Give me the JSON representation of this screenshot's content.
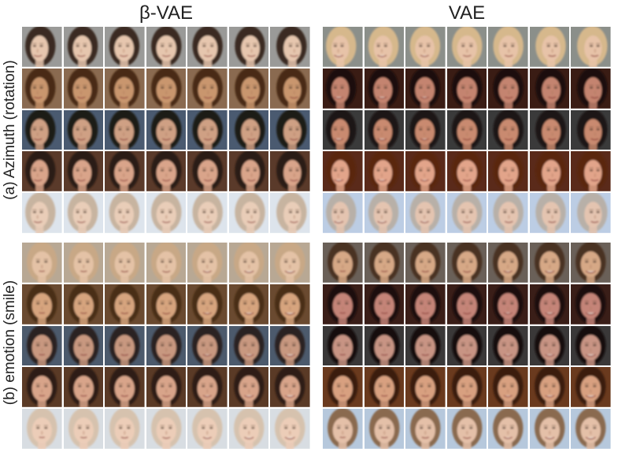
{
  "columns": {
    "beta_vae": "β-VAE",
    "vae": "VAE"
  },
  "rows": {
    "a": "(a) Azimuth (rotation)",
    "b": "(b) emotion (smile)"
  },
  "panels": {
    "a_beta": {
      "backgrounds": [
        "#9a9a98",
        "#8a6a50",
        "#4a5a70",
        "#5a3a2a",
        "#dde4ec"
      ],
      "skins": [
        "#e6c6ae",
        "#c9966e",
        "#cfa084",
        "#d9a48a",
        "#e9cdb8"
      ],
      "hair": [
        "#3a2c22",
        "#4a2c16",
        "#1e1a18",
        "#2a1a12",
        "#c7b4a0"
      ],
      "turn": [
        -0.5,
        -0.3,
        -0.1,
        0,
        0.1,
        0.3,
        0.5
      ],
      "smile": [
        0.5,
        0.5,
        0.5,
        0.5,
        0.5,
        0.5,
        0.5
      ]
    },
    "a_vae": {
      "backgrounds": [
        "#8b8f8a",
        "#3a1c14",
        "#3a3a3a",
        "#5a2a1a",
        "#bccde4"
      ],
      "skins": [
        "#e7c3a8",
        "#c48470",
        "#c98a70",
        "#e2a48a",
        "#e4c4b0"
      ],
      "hair": [
        "#d6b88c",
        "#1a0e0a",
        "#1a1412",
        "#5a2810",
        "#b8b0a8"
      ],
      "turn": [
        -0.5,
        -0.3,
        -0.1,
        0,
        0.1,
        0.3,
        0.5
      ],
      "smile": [
        0.7,
        0.7,
        0.6,
        0.5,
        0.5,
        0.4,
        0.4
      ]
    },
    "b_beta": {
      "backgrounds": [
        "#b8a894",
        "#6a4a30",
        "#4c5a6c",
        "#5a3a26",
        "#d8dde2"
      ],
      "skins": [
        "#e4c2a6",
        "#d6a47e",
        "#c89880",
        "#d8a48a",
        "#eccdb8"
      ],
      "hair": [
        "#c8a886",
        "#4a2e18",
        "#2a2420",
        "#2e1c12",
        "#d6c2ae"
      ],
      "turn": [
        0,
        0,
        0,
        0,
        0,
        0,
        0
      ],
      "smile": [
        0,
        0.15,
        0.3,
        0.45,
        0.6,
        0.75,
        0.9
      ]
    },
    "b_vae": {
      "backgrounds": [
        "#6a6058",
        "#3a1e18",
        "#3a3838",
        "#6a3a1e",
        "#b6c8dc"
      ],
      "skins": [
        "#d6a886",
        "#c48478",
        "#c89484",
        "#d8a080",
        "#e4c0a8"
      ],
      "hair": [
        "#4a3020",
        "#1c100c",
        "#141010",
        "#3a1e10",
        "#8a6a50"
      ],
      "turn": [
        0,
        0,
        0,
        0,
        0,
        0,
        0
      ],
      "smile": [
        0,
        0.15,
        0.3,
        0.45,
        0.6,
        0.75,
        0.9
      ]
    }
  }
}
